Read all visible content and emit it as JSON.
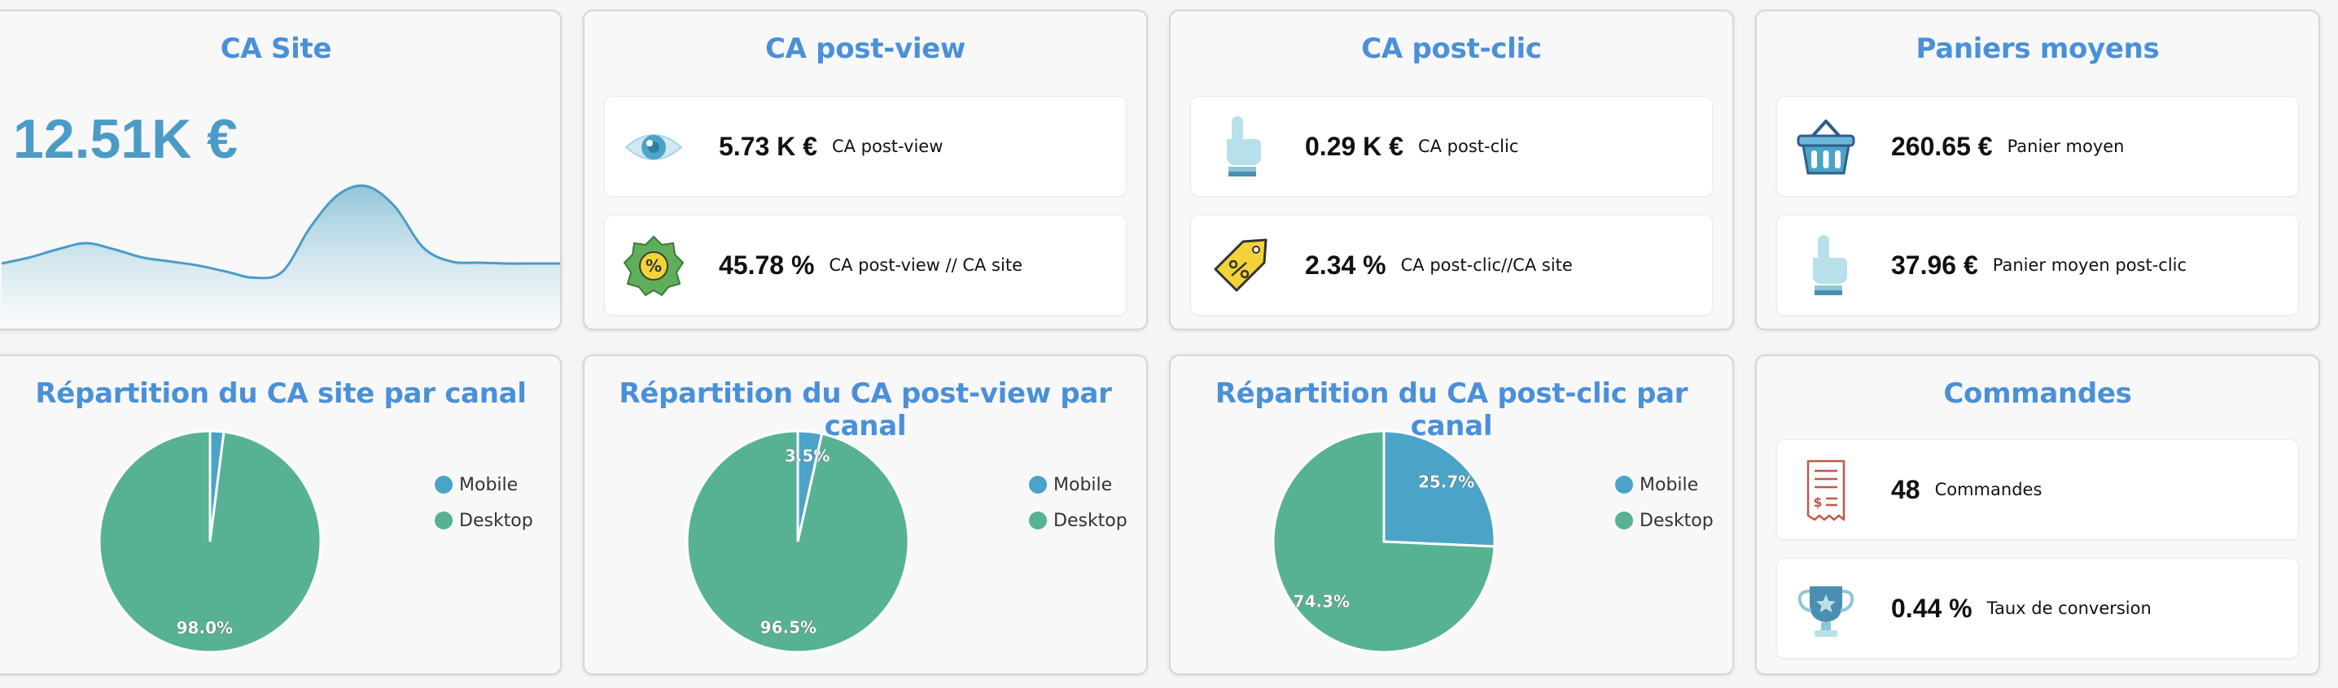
{
  "colors": {
    "title": "#4a90d9",
    "mobile": "#4ba3c7",
    "desktop": "#57b294",
    "sparkline": "#4a9cc7"
  },
  "ca_site": {
    "title": "CA Site",
    "value": "12.51K €"
  },
  "ca_postview": {
    "title": "CA post-view",
    "kpis": [
      {
        "value": "5.73 K €",
        "label": "CA post-view",
        "icon": "eye-icon"
      },
      {
        "value": "45.78 %",
        "label": "CA post-view // CA site",
        "icon": "percent-badge-icon"
      }
    ]
  },
  "ca_postclic": {
    "title": "CA post-clic",
    "kpis": [
      {
        "value": "0.29 K €",
        "label": "CA post-clic",
        "icon": "pointer-hand-icon"
      },
      {
        "value": "2.34 %",
        "label": "CA post-clic//CA site",
        "icon": "percent-tag-icon"
      }
    ]
  },
  "paniers": {
    "title": "Paniers moyens",
    "kpis": [
      {
        "value": "260.65 €",
        "label": "Panier moyen",
        "icon": "basket-icon"
      },
      {
        "value": "37.96 €",
        "label": "Panier moyen post-clic",
        "icon": "pointer-hand-icon"
      }
    ]
  },
  "commandes": {
    "title": "Commandes",
    "kpis": [
      {
        "value": "48",
        "label": "Commandes",
        "icon": "receipt-icon"
      },
      {
        "value": "0.44 %",
        "label": "Taux de conversion",
        "icon": "trophy-icon"
      }
    ]
  },
  "pie_site": {
    "title": "Répartition du CA site par canal",
    "legend": [
      "Mobile",
      "Desktop"
    ]
  },
  "pie_postview": {
    "title": "Répartition du CA post-view par canal",
    "legend": [
      "Mobile",
      "Desktop"
    ]
  },
  "pie_postclic": {
    "title": "Répartition du CA post-clic par canal",
    "legend": [
      "Mobile",
      "Desktop"
    ]
  },
  "chart_data": [
    {
      "type": "area",
      "title": "CA Site",
      "x": [
        0,
        1,
        2,
        3,
        4,
        5,
        6,
        7,
        8,
        9,
        10,
        11,
        12,
        13,
        14,
        15,
        16,
        17,
        18,
        19,
        20
      ],
      "values": [
        0.2,
        0.35,
        0.55,
        0.7,
        0.55,
        0.35,
        0.25,
        0.15,
        0.0,
        -0.15,
        0.0,
        1.1,
        1.9,
        2.1,
        1.6,
        0.6,
        0.25,
        0.22,
        0.2,
        0.2,
        0.2
      ],
      "grid": false
    },
    {
      "type": "pie",
      "title": "Répartition du CA site par canal",
      "labels": [
        "Mobile",
        "Desktop"
      ],
      "values": [
        2.0,
        98.0
      ],
      "data_labels": [
        "",
        "98.0%"
      ]
    },
    {
      "type": "pie",
      "title": "Répartition du CA post-view par canal",
      "labels": [
        "Mobile",
        "Desktop"
      ],
      "values": [
        3.5,
        96.5
      ],
      "data_labels": [
        "3.5%",
        "96.5%"
      ]
    },
    {
      "type": "pie",
      "title": "Répartition du CA post-clic par canal",
      "labels": [
        "Mobile",
        "Desktop"
      ],
      "values": [
        25.7,
        74.3
      ],
      "data_labels": [
        "25.7%",
        "74.3%"
      ]
    }
  ]
}
